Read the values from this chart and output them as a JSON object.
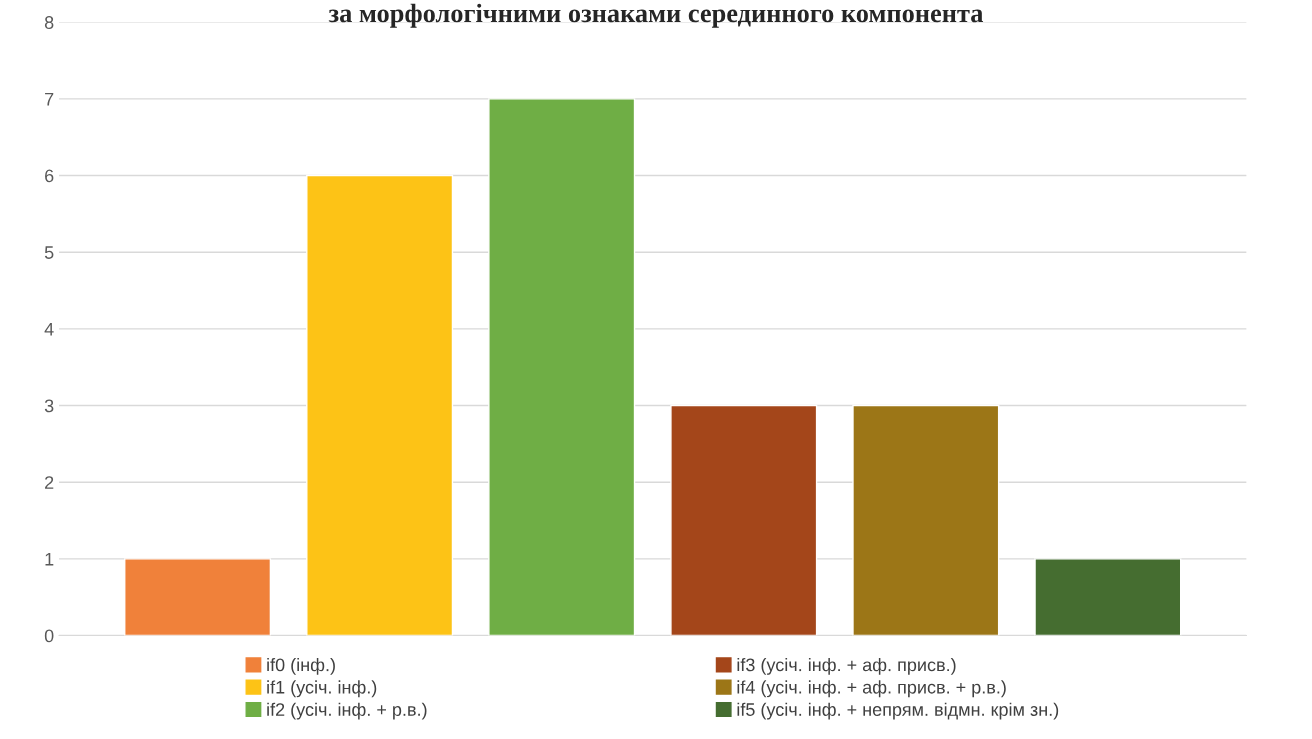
{
  "chart_data": {
    "type": "bar",
    "title": "за морфологічними ознаками серединного компонента",
    "categories": [
      null
    ],
    "series": [
      {
        "name": "if0 (інф.)",
        "color": "#f0813a",
        "values": [
          1
        ]
      },
      {
        "name": "if1 (усіч. інф.)",
        "color": "#fdc316",
        "values": [
          6
        ]
      },
      {
        "name": "if2 (усіч. інф. + р.в.)",
        "color": "#6fae45",
        "values": [
          7
        ]
      },
      {
        "name": "if3 (усіч. інф. + аф. присв.)",
        "color": "#a4461a",
        "values": [
          3
        ]
      },
      {
        "name": "if4 (усіч. інф. + аф. присв. + р.в.)",
        "color": "#9c7617",
        "values": [
          3
        ]
      },
      {
        "name": "if5 (усіч. інф. + непрям. відмн. крім зн.)",
        "color": "#456d30",
        "values": [
          1
        ]
      }
    ],
    "ylim": [
      0,
      8
    ],
    "yticks": [
      0,
      1,
      2,
      3,
      4,
      5,
      6,
      7,
      8
    ],
    "grid": "y",
    "legend": "bottom"
  }
}
